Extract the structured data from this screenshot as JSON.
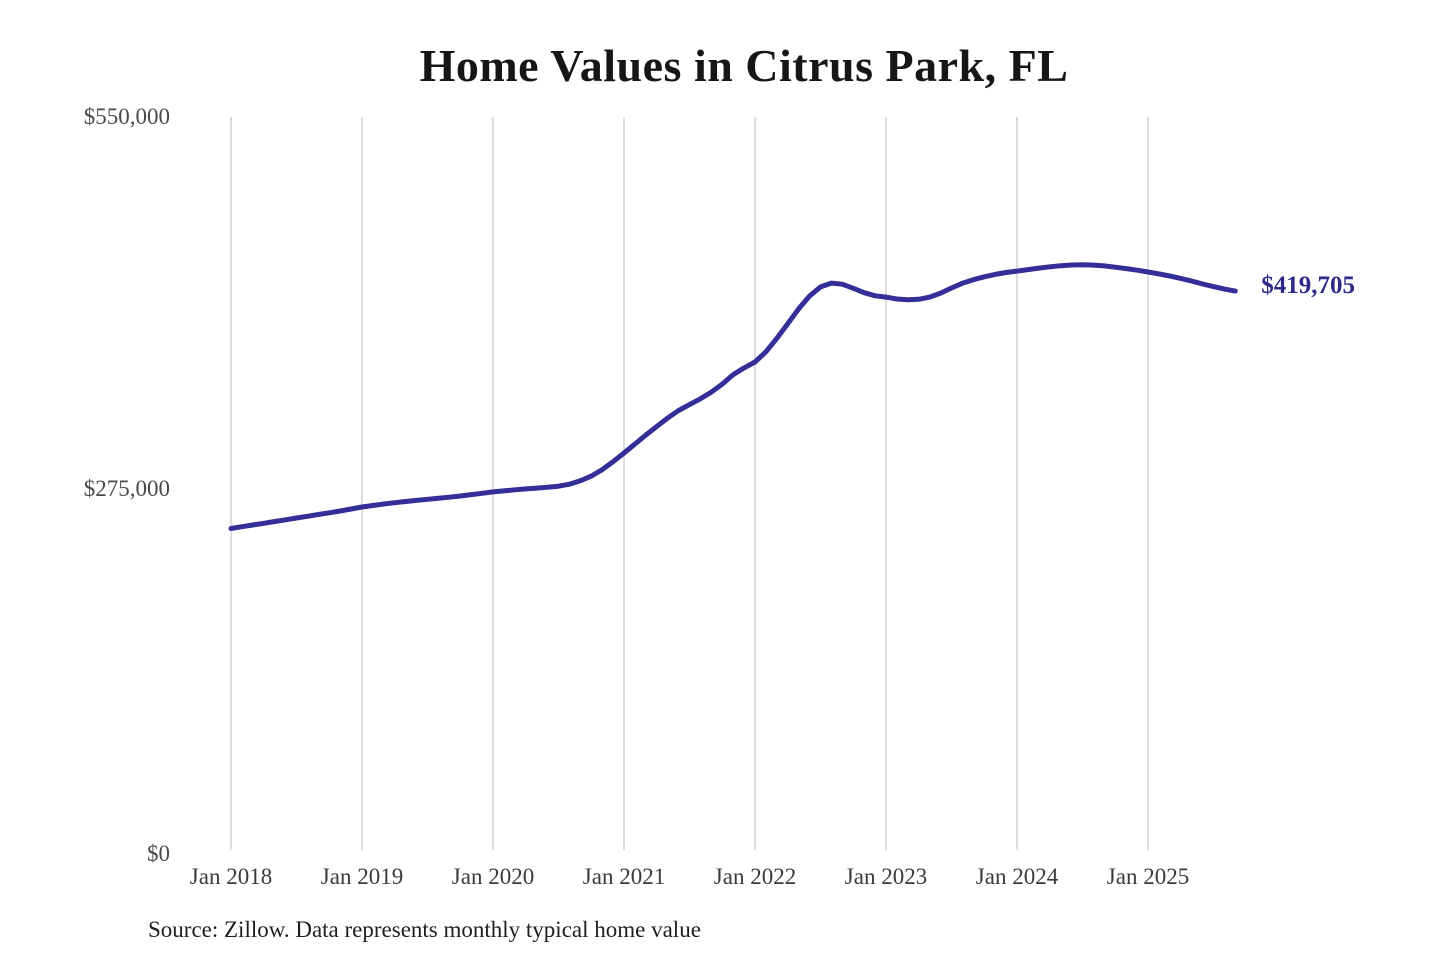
{
  "chart_data": {
    "type": "line",
    "title": "Home Values in Citrus Park, FL",
    "source_note": "Source: Zillow. Data represents monthly typical home value",
    "end_label": "$419,705",
    "last_value": 419705,
    "xlabel": "",
    "ylabel": "",
    "ylim": [
      0,
      550000
    ],
    "y_tick_labels": [
      "$550,000",
      "$275,000",
      "$0"
    ],
    "y_tick_values": [
      550000,
      275000,
      0
    ],
    "x_tick_labels": [
      "Jan 2018",
      "Jan 2019",
      "Jan 2020",
      "Jan 2021",
      "Jan 2022",
      "Jan 2023",
      "Jan 2024",
      "Jan 2025"
    ],
    "grid": "vertical-only",
    "legend": "none",
    "colors": {
      "line": "#342e98",
      "end_label": "#2e2a8a",
      "grid": "#d2d2d2",
      "title": "#161616",
      "axis_text": "#4a4a4a",
      "source_text": "#1e1e1e",
      "background": "#ffffff"
    },
    "series": [
      {
        "name": "Monthly typical home value",
        "frequency": "monthly",
        "x_start": "2018-01",
        "x_end": "2025-09",
        "values": [
          243000,
          244300,
          245600,
          246900,
          248200,
          249500,
          250800,
          252100,
          253400,
          254700,
          256000,
          257500,
          259000,
          260100,
          261200,
          262200,
          263100,
          263900,
          264700,
          265500,
          266300,
          267200,
          268200,
          269200,
          270200,
          271000,
          271800,
          272500,
          273100,
          273700,
          274500,
          276000,
          278500,
          282000,
          286800,
          292700,
          299200,
          305800,
          312500,
          319000,
          325200,
          330800,
          335200,
          339500,
          344500,
          350500,
          357500,
          362500,
          366900,
          374500,
          384500,
          395500,
          406500,
          416000,
          422800,
          425600,
          424800,
          421800,
          418500,
          416200,
          415200,
          413800,
          413200,
          413600,
          415200,
          418200,
          422000,
          425500,
          428200,
          430300,
          432100,
          433500,
          434600,
          435700,
          436800,
          437800,
          438600,
          439100,
          439300,
          439000,
          438400,
          437500,
          436400,
          435200,
          433900,
          432500,
          430900,
          429100,
          427100,
          425000,
          423000,
          421200,
          419705
        ]
      }
    ]
  }
}
